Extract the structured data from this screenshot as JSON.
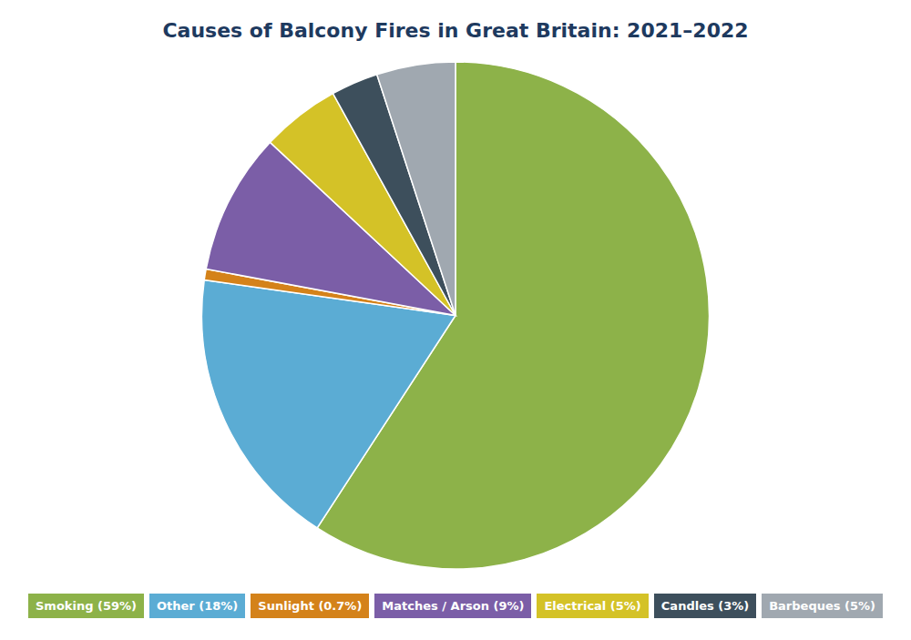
{
  "chart_data": {
    "type": "pie",
    "title": "Causes of Balcony Fires in Great Britain: 2021–2022",
    "categories": [
      "Smoking (59%)",
      "Other (18%)",
      "Sunlight (0.7%)",
      "Matches / Arson (9%)",
      "Electrical (5%)",
      "Candles (3%)",
      "Barbeques (5%)"
    ],
    "values": [
      59,
      18,
      0.7,
      9,
      5,
      3,
      5
    ],
    "colors": [
      "#8db249",
      "#5bacd4",
      "#d4821a",
      "#7b5ea7",
      "#d4c227",
      "#3d4f5c",
      "#a0a8b0"
    ],
    "legend": "bottom"
  }
}
